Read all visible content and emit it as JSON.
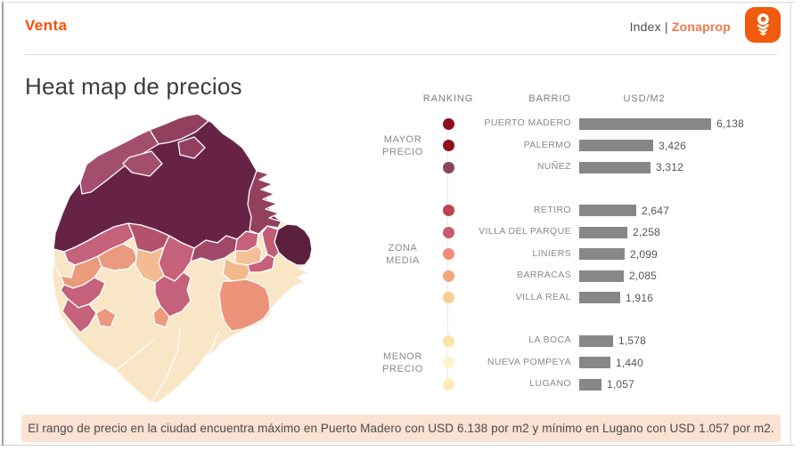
{
  "header": {
    "left_title": "Venta",
    "right_prefix": "Index | ",
    "right_brand": "Zonaprop"
  },
  "icons": {
    "logo": "zonaprop-key-icon"
  },
  "page_title": "Heat map de precios",
  "table_headers": {
    "ranking": "RANKING",
    "barrio": "BARRIO",
    "usd": "USD/M2"
  },
  "groups": [
    {
      "label": "MAYOR\nPRECIO",
      "rows": [
        {
          "barrio": "PUERTO MADERO",
          "value": 6138,
          "value_label": "6,138",
          "dot_color": "#8f0e1f"
        },
        {
          "barrio": "PALERMO",
          "value": 3426,
          "value_label": "3,426",
          "dot_color": "#8f101f"
        },
        {
          "barrio": "NUÑEZ",
          "value": 3312,
          "value_label": "3,312",
          "dot_color": "#8c4263"
        }
      ]
    },
    {
      "label": "ZONA\nMEDIA",
      "rows": [
        {
          "barrio": "RETIRO",
          "value": 2647,
          "value_label": "2,647",
          "dot_color": "#c0434f"
        },
        {
          "barrio": "VILLA DEL PARQUE",
          "value": 2258,
          "value_label": "2,258",
          "dot_color": "#ca5a6e"
        },
        {
          "barrio": "LINIERS",
          "value": 2099,
          "value_label": "2,099",
          "dot_color": "#ef8d78"
        },
        {
          "barrio": "BARRACAS",
          "value": 2085,
          "value_label": "2,085",
          "dot_color": "#f5a67c"
        },
        {
          "barrio": "VILLA REAL",
          "value": 1916,
          "value_label": "1,916",
          "dot_color": "#f7cf93"
        }
      ]
    },
    {
      "label": "MENOR\nPRECIO",
      "rows": [
        {
          "barrio": "LA BOCA",
          "value": 1578,
          "value_label": "1,578",
          "dot_color": "#fae4a3"
        },
        {
          "barrio": "NUEVA POMPEYA",
          "value": 1440,
          "value_label": "1,440",
          "dot_color": "#fdf3cf"
        },
        {
          "barrio": "LUGANO",
          "value": 1057,
          "value_label": "1,057",
          "dot_color": "#fcecb4"
        }
      ]
    }
  ],
  "footer": {
    "note": "El rango de precio en la ciudad encuentra máximo en Puerto Madero con USD 6.138 por m2 y mínimo en Lugano con USD 1.057 por m2."
  },
  "colors": {
    "accent_orange": "#fb4d0a",
    "logo_orange": "#f15b0d",
    "brand_text_orange": "#f4764d",
    "bar_gray": "#878787",
    "banner_bg": "#fbe2d3",
    "map": {
      "dark": "#672346",
      "darker": "#5d1f3e",
      "medium": "#93405f",
      "medium2": "#a04868",
      "mediumLight": "#a44e6e",
      "rose": "#c6617b",
      "rose2": "#c25f76",
      "roseDeep": "#b4516d",
      "salmon": "#eb9a7e",
      "salmon2": "#ec9379",
      "peach": "#f2bb92",
      "peach2": "#f3c098",
      "peach3": "#f2b88e",
      "cream": "#f9e6c7"
    }
  },
  "chart_data": [
    {
      "type": "bar",
      "title": "Heat map de precios — Venta (Index Zonaprop)",
      "categories": [
        "PUERTO MADERO",
        "PALERMO",
        "NUÑEZ",
        "RETIRO",
        "VILLA DEL PARQUE",
        "LINIERS",
        "BARRACAS",
        "VILLA REAL",
        "LA BOCA",
        "NUEVA POMPEYA",
        "LUGANO"
      ],
      "values": [
        6138,
        3426,
        3312,
        2647,
        2258,
        2099,
        2085,
        1916,
        1578,
        1440,
        1057
      ],
      "group_of_category": [
        "MAYOR PRECIO",
        "MAYOR PRECIO",
        "MAYOR PRECIO",
        "ZONA MEDIA",
        "ZONA MEDIA",
        "ZONA MEDIA",
        "ZONA MEDIA",
        "ZONA MEDIA",
        "MENOR PRECIO",
        "MENOR PRECIO",
        "MENOR PRECIO"
      ],
      "xlabel": "USD/M2",
      "ylabel": "BARRIO",
      "xlim": [
        0,
        6138
      ],
      "orientation": "horizontal",
      "grid": false,
      "legend_position": "left-rail-dots"
    },
    {
      "type": "heatmap",
      "subtype": "choropleth-map-buenos-aires",
      "title": "Heat map de precios",
      "legend": [
        "MAYOR PRECIO",
        "ZONA MEDIA",
        "MENOR PRECIO"
      ],
      "note": "Dark plum = mayor precio (norte / Puerto Madero), rosa = zona media, crema = menor precio (sur/oeste)"
    }
  ]
}
